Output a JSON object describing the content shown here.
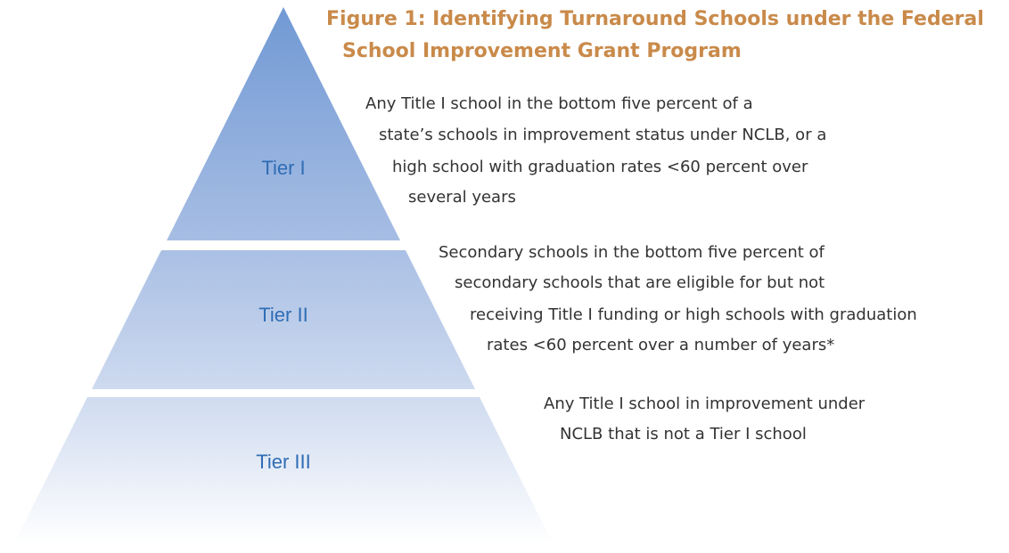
{
  "title": {
    "lines": [
      "Figure 1: Identifying Turnaround Schools under the Federal",
      "School Improvement Grant Program"
    ]
  },
  "tiers": [
    {
      "label": "Tier I",
      "description": [
        "Any Title I school in the bottom five percent of a",
        "state’s schools in improvement status under NCLB, or a",
        "high school with graduation rates <60 percent over",
        "several years"
      ]
    },
    {
      "label": "Tier II",
      "description": [
        "Secondary schools in the bottom five percent of",
        "secondary schools that are eligible for but not",
        "receiving Title I funding or high schools with graduation",
        "rates <60 percent over a number of years*"
      ]
    },
    {
      "label": "Tier III",
      "description": [
        "Any Title I school in improvement under",
        "NCLB that is not a Tier I school"
      ]
    }
  ]
}
